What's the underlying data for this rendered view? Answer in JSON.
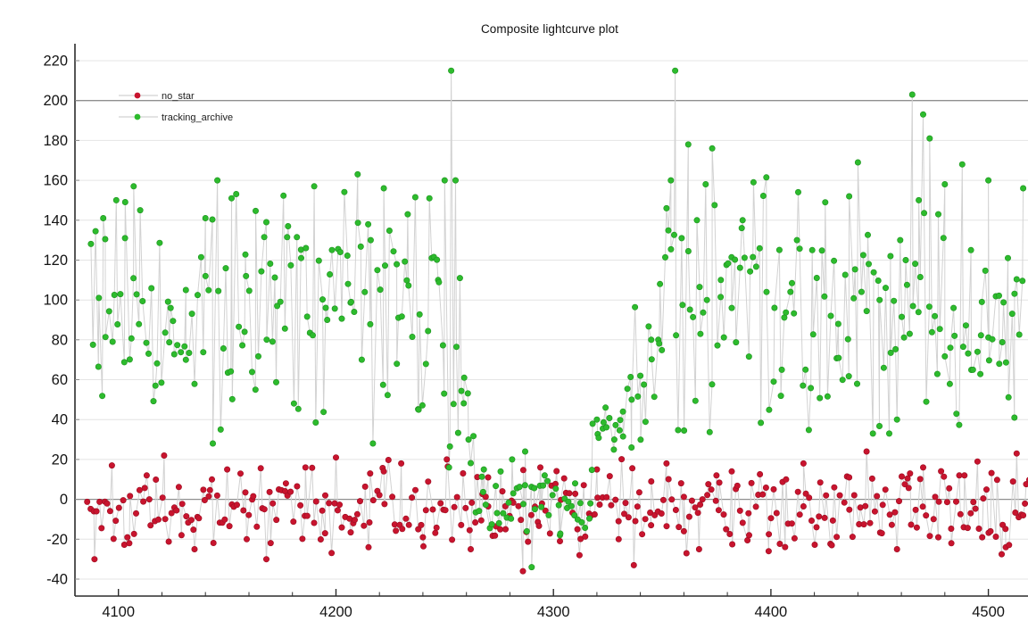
{
  "chart_data": {
    "type": "scatter-line",
    "title": "Composite lightcurve plot",
    "xlabel": "",
    "ylabel": "",
    "x_range": [
      4080,
      4533
    ],
    "y_range": [
      -48.5,
      228.5
    ],
    "x_ticks": [
      {
        "v": 4100,
        "label": "4100"
      },
      {
        "v": 4200,
        "label": "4200"
      },
      {
        "v": 4300,
        "label": "4300"
      },
      {
        "v": 4400,
        "label": "4400"
      },
      {
        "v": 4500,
        "label": "4500"
      }
    ],
    "x_minor_tick_step": 20,
    "y_ticks": [
      {
        "v": -40,
        "label": "-40"
      },
      {
        "v": -20,
        "label": "-20"
      },
      {
        "v": 0,
        "label": "0"
      },
      {
        "v": 20,
        "label": "20"
      },
      {
        "v": 40,
        "label": "40"
      },
      {
        "v": 60,
        "label": "60"
      },
      {
        "v": 80,
        "label": "80"
      },
      {
        "v": 100,
        "label": "100"
      },
      {
        "v": 120,
        "label": "120"
      },
      {
        "v": 140,
        "label": "140"
      },
      {
        "v": 160,
        "label": "160"
      },
      {
        "v": 180,
        "label": "180"
      },
      {
        "v": 200,
        "label": "200"
      },
      {
        "v": 220,
        "label": "220"
      }
    ],
    "reference_lines_y": [
      0,
      200
    ],
    "grid": "horizontal",
    "background": "#ffffff",
    "colors": {
      "grid": "#e4e4e4",
      "ref_line": "#8f8f8f",
      "spine": "#2b2b2b",
      "connector": "#d2d2d2",
      "title": "#111111"
    },
    "legend": {
      "position": "top-left",
      "entries": [
        {
          "label": "no_star",
          "color": "#c8142e"
        },
        {
          "label": "tracking_archive",
          "color": "#2dbb2d"
        }
      ]
    },
    "series": [
      {
        "name": "no_star",
        "color": "#c8142e",
        "edge_color": "#9c0e22",
        "marker": "circle",
        "marker_radius": 3.2,
        "n_points": 330,
        "x_start": 4086,
        "x_end": 4519,
        "seed": 1337,
        "segments": [
          {
            "x0": 4086,
            "x1": 4520,
            "mean": -4,
            "spread": 13,
            "min": -33,
            "max": 25
          }
        ],
        "anchors": [
          [
            4089,
            -30
          ],
          [
            4097,
            17
          ],
          [
            4105,
            -22
          ],
          [
            4113,
            12
          ],
          [
            4121,
            22
          ],
          [
            4129,
            -18
          ],
          [
            4135,
            -25
          ],
          [
            4143,
            10
          ],
          [
            4150,
            15
          ],
          [
            4159,
            -20
          ],
          [
            4168,
            -30
          ],
          [
            4177,
            8
          ],
          [
            4186,
            16
          ],
          [
            4195,
            -17
          ],
          [
            4200,
            21
          ],
          [
            4208,
            -12
          ],
          [
            4215,
            -24
          ],
          [
            4222,
            14
          ],
          [
            4230,
            18
          ],
          [
            4240,
            -19
          ],
          [
            4251,
            20
          ],
          [
            4262,
            -25
          ],
          [
            4270,
            11
          ],
          [
            4278,
            -15
          ],
          [
            4286,
            -36
          ],
          [
            4294,
            16
          ],
          [
            4303,
            -21
          ],
          [
            4312,
            -28
          ],
          [
            4320,
            15
          ],
          [
            4330,
            -20
          ],
          [
            4337,
            -33
          ],
          [
            4345,
            9
          ],
          [
            4352,
            18
          ],
          [
            4360,
            -16
          ],
          [
            4367,
            -25
          ],
          [
            4375,
            12
          ],
          [
            4382,
            14
          ],
          [
            4390,
            -18
          ],
          [
            4399,
            -26
          ],
          [
            4407,
            10
          ],
          [
            4415,
            18
          ],
          [
            4421,
            -14
          ],
          [
            4428,
            -23
          ],
          [
            4436,
            11
          ],
          [
            4444,
            24
          ],
          [
            4451,
            -17
          ],
          [
            4458,
            -25
          ],
          [
            4464,
            13
          ],
          [
            4470,
            16
          ],
          [
            4477,
            -19
          ],
          [
            4483,
            -22
          ],
          [
            4489,
            12
          ],
          [
            4495,
            19
          ],
          [
            4501,
            -16
          ],
          [
            4508,
            -24
          ],
          [
            4513,
            23
          ],
          [
            4516,
            -8
          ]
        ]
      },
      {
        "name": "tracking_archive",
        "color": "#2dbb2d",
        "edge_color": "#1e9220",
        "marker": "circle",
        "marker_radius": 3.2,
        "n_points": 340,
        "x_start": 4087,
        "x_end": 4516,
        "seed": 2024,
        "segments": [
          {
            "x0": 4086,
            "x1": 4252,
            "mean": 96,
            "spread": 40,
            "min": 28,
            "max": 160
          },
          {
            "x0": 4252,
            "x1": 4264,
            "mean": 60,
            "spread": 38,
            "min": 16,
            "max": 160
          },
          {
            "x0": 4264,
            "x1": 4318,
            "mean": -2,
            "spread": 12,
            "min": -34,
            "max": 24
          },
          {
            "x0": 4318,
            "x1": 4334,
            "mean": 33,
            "spread": 9,
            "min": 16,
            "max": 52
          },
          {
            "x0": 4334,
            "x1": 4350,
            "mean": 66,
            "spread": 24,
            "min": 26,
            "max": 122
          },
          {
            "x0": 4350,
            "x1": 4520,
            "mean": 96,
            "spread": 38,
            "min": 33,
            "max": 165
          }
        ],
        "anchors": [
          [
            4091,
            101
          ],
          [
            4093,
            141
          ],
          [
            4099,
            150
          ],
          [
            4103,
            131
          ],
          [
            4107,
            157
          ],
          [
            4110,
            145
          ],
          [
            4117,
            57
          ],
          [
            4124,
            96
          ],
          [
            4131,
            70
          ],
          [
            4140,
            141
          ],
          [
            4147,
            35
          ],
          [
            4152,
            151
          ],
          [
            4158,
            84
          ],
          [
            4163,
            55
          ],
          [
            4168,
            139
          ],
          [
            4173,
            97
          ],
          [
            4178,
            137
          ],
          [
            4184,
            121
          ],
          [
            4190,
            157
          ],
          [
            4196,
            90
          ],
          [
            4202,
            124
          ],
          [
            4207,
            99
          ],
          [
            4210,
            163
          ],
          [
            4216,
            130
          ],
          [
            4222,
            156
          ],
          [
            4228,
            68
          ],
          [
            4233,
            143
          ],
          [
            4238,
            45
          ],
          [
            4243,
            151
          ],
          [
            4247,
            110
          ],
          [
            4250,
            160
          ],
          [
            4253,
            215
          ],
          [
            4255,
            160
          ],
          [
            4257,
            111
          ],
          [
            4259,
            61
          ],
          [
            4261,
            30
          ],
          [
            4268,
            15
          ],
          [
            4275,
            -12
          ],
          [
            4281,
            20
          ],
          [
            4287,
            24
          ],
          [
            4290,
            -34
          ],
          [
            4296,
            12
          ],
          [
            4303,
            -18
          ],
          [
            4310,
            8
          ],
          [
            4317,
            -2
          ],
          [
            4320,
            40
          ],
          [
            4324,
            46
          ],
          [
            4328,
            30
          ],
          [
            4332,
            44
          ],
          [
            4336,
            50
          ],
          [
            4340,
            62
          ],
          [
            4345,
            80
          ],
          [
            4349,
            108
          ],
          [
            4352,
            146
          ],
          [
            4354,
            160
          ],
          [
            4356,
            215
          ],
          [
            4359,
            131
          ],
          [
            4362,
            178
          ],
          [
            4366,
            140
          ],
          [
            4370,
            158
          ],
          [
            4373,
            176
          ],
          [
            4377,
            110
          ],
          [
            4382,
            96
          ],
          [
            4387,
            140
          ],
          [
            4392,
            159
          ],
          [
            4398,
            104
          ],
          [
            4405,
            65
          ],
          [
            4412,
            130
          ],
          [
            4419,
            125
          ],
          [
            4425,
            149
          ],
          [
            4431,
            88
          ],
          [
            4436,
            152
          ],
          [
            4440,
            169
          ],
          [
            4445,
            118
          ],
          [
            4450,
            100
          ],
          [
            4455,
            122
          ],
          [
            4458,
            40
          ],
          [
            4462,
            120
          ],
          [
            4465,
            203
          ],
          [
            4468,
            150
          ],
          [
            4470,
            193
          ],
          [
            4473,
            181
          ],
          [
            4477,
            143
          ],
          [
            4480,
            158
          ],
          [
            4484,
            96
          ],
          [
            4488,
            168
          ],
          [
            4492,
            125
          ],
          [
            4497,
            99
          ],
          [
            4500,
            160
          ],
          [
            4505,
            68
          ],
          [
            4509,
            121
          ],
          [
            4512,
            41
          ],
          [
            4516,
            156
          ]
        ]
      }
    ]
  }
}
